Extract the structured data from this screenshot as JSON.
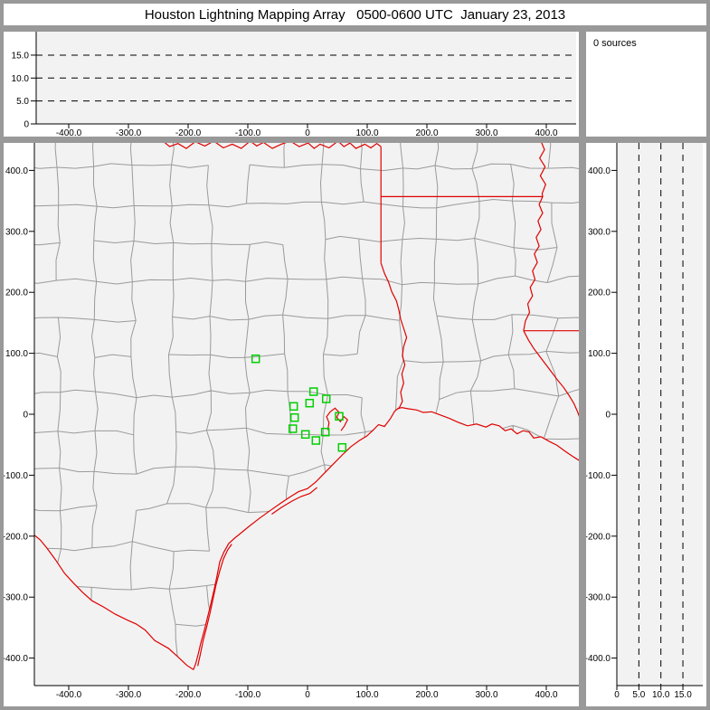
{
  "title": "Houston Lightning Mapping Array   0500-0600 UTC  January 23, 2013",
  "sources_label": "0 sources",
  "colors": {
    "frame": "#999999",
    "panel_bg": "#ffffff",
    "plot_bg": "#f2f2f2",
    "county_line": "#9a9a9a",
    "state_line": "#e00000",
    "station": "#00d000",
    "axis": "#000000",
    "gridline": "#000000",
    "text": "#000000"
  },
  "chart_data": {
    "type": "scatter",
    "title": "Houston Lightning Mapping Array",
    "time_range": "0500-0600 UTC",
    "date": "January 23, 2013",
    "sources_count": 0,
    "lightning_points": [],
    "x_km_ticks": {
      "values": [
        -400,
        -300,
        -200,
        -100,
        0,
        100,
        200,
        300,
        400
      ],
      "labels": [
        "-400.0",
        "-300.0",
        "-200.0",
        "-100.0",
        "0",
        "100.0",
        "200.0",
        "300.0",
        "400.0"
      ]
    },
    "y_km_ticks": {
      "values": [
        400,
        300,
        200,
        100,
        0,
        -100,
        -200,
        -300,
        -400
      ],
      "labels": [
        "400.0",
        "300.0",
        "200.0",
        "100.0",
        "0",
        "-100.0",
        "-200.0",
        "-300.0",
        "-400.0"
      ]
    },
    "alt_ticks": {
      "values": [
        0,
        5,
        10,
        15
      ],
      "labels": [
        "0",
        "5.0",
        "10.0",
        "15.0"
      ]
    },
    "alt_gridlines": [
      5,
      10,
      15
    ],
    "xlim_km": [
      -458,
      457
    ],
    "ylim_km": [
      -445,
      445
    ],
    "alt_lim_km": [
      0,
      20
    ],
    "stations_km": [
      [
        10.2,
        37.1
      ],
      [
        3.5,
        18.2
      ],
      [
        -23.2,
        12.9
      ],
      [
        31.4,
        25.2
      ],
      [
        -21.7,
        -5.5
      ],
      [
        -24.7,
        -23.7
      ],
      [
        -3.5,
        -33.1
      ],
      [
        14.1,
        -43.0
      ],
      [
        29.8,
        -29.2
      ],
      [
        53.0,
        -3.4
      ],
      [
        58.0,
        -54.5
      ],
      [
        -86.8,
        91.0
      ]
    ],
    "map_geometry_km": {
      "rio_grande": [
        [
          -458,
          -198
        ],
        [
          -448,
          -206
        ],
        [
          -437,
          -219
        ],
        [
          -422,
          -239
        ],
        [
          -407,
          -261
        ],
        [
          -392,
          -277
        ],
        [
          -377,
          -292
        ],
        [
          -361,
          -306
        ],
        [
          -342,
          -316
        ],
        [
          -322,
          -328
        ],
        [
          -301,
          -338
        ],
        [
          -287,
          -344
        ],
        [
          -272,
          -354
        ],
        [
          -256,
          -371
        ],
        [
          -233,
          -384
        ],
        [
          -217,
          -398
        ],
        [
          -202,
          -412
        ],
        [
          -191,
          -419
        ]
      ],
      "coastline": [
        [
          -191,
          -419
        ],
        [
          -187,
          -408
        ],
        [
          -183,
          -393
        ],
        [
          -179,
          -376
        ],
        [
          -173,
          -355
        ],
        [
          -167,
          -331
        ],
        [
          -162,
          -311
        ],
        [
          -157,
          -290
        ],
        [
          -152,
          -267
        ],
        [
          -147,
          -242
        ],
        [
          -140,
          -226
        ],
        [
          -132,
          -212
        ],
        [
          -123,
          -204
        ],
        [
          -113,
          -196
        ],
        [
          -98,
          -184
        ],
        [
          -81,
          -171
        ],
        [
          -61,
          -157
        ],
        [
          -45,
          -146
        ],
        [
          -30,
          -136
        ],
        [
          -15,
          -127
        ],
        [
          0,
          -122
        ],
        [
          14,
          -111
        ],
        [
          29,
          -96
        ],
        [
          44,
          -81
        ],
        [
          59,
          -66
        ],
        [
          73,
          -53
        ],
        [
          87,
          -43
        ],
        [
          99,
          -36
        ],
        [
          109,
          -27
        ],
        [
          119,
          -17
        ],
        [
          129,
          -20
        ],
        [
          139,
          -7
        ],
        [
          146,
          5
        ],
        [
          151,
          9
        ],
        [
          158,
          11
        ],
        [
          168,
          9
        ],
        [
          183,
          7
        ],
        [
          194,
          3
        ],
        [
          208,
          4
        ],
        [
          222,
          -1
        ],
        [
          238,
          -7
        ],
        [
          252,
          -13
        ],
        [
          268,
          -19
        ],
        [
          283,
          -16
        ],
        [
          299,
          -21
        ],
        [
          309,
          -16
        ],
        [
          321,
          -19
        ],
        [
          331,
          -27
        ],
        [
          341,
          -24
        ],
        [
          351,
          -32
        ],
        [
          361,
          -27
        ],
        [
          371,
          -29
        ],
        [
          379,
          -39
        ],
        [
          391,
          -37
        ],
        [
          404,
          -44
        ],
        [
          418,
          -51
        ],
        [
          432,
          -61
        ],
        [
          444,
          -69
        ],
        [
          457,
          -77
        ]
      ],
      "barrier_island": [
        [
          -184,
          -413
        ],
        [
          -180,
          -396
        ],
        [
          -175,
          -372
        ],
        [
          -169,
          -349
        ],
        [
          -163,
          -325
        ],
        [
          -158,
          -302
        ],
        [
          -153,
          -279
        ],
        [
          -147,
          -257
        ],
        [
          -141,
          -238
        ],
        [
          -134,
          -223
        ],
        [
          -127,
          -213
        ]
      ],
      "matagorda_island": [
        [
          -60,
          -164
        ],
        [
          -44,
          -153
        ],
        [
          -27,
          -143
        ],
        [
          -11,
          -135
        ],
        [
          4,
          -130
        ],
        [
          16,
          -120
        ]
      ],
      "galveston_bay": [
        [
          34,
          -26
        ],
        [
          36,
          -14
        ],
        [
          32,
          -4
        ],
        [
          38,
          4
        ],
        [
          46,
          10
        ],
        [
          53,
          3
        ],
        [
          49,
          -5
        ],
        [
          55,
          -12
        ],
        [
          61,
          -4
        ],
        [
          67,
          -9
        ],
        [
          62,
          -19
        ],
        [
          56,
          -27
        ]
      ],
      "red_river": [
        [
          -242,
          448
        ],
        [
          -231,
          439
        ],
        [
          -217,
          444
        ],
        [
          -203,
          436
        ],
        [
          -188,
          447
        ],
        [
          -172,
          440
        ],
        [
          -157,
          448
        ],
        [
          -141,
          437
        ],
        [
          -126,
          443
        ],
        [
          -111,
          436
        ],
        [
          -96,
          448
        ],
        [
          -85,
          440
        ],
        [
          -74,
          446
        ],
        [
          -59,
          436
        ],
        [
          -44,
          443
        ],
        [
          -29,
          448
        ],
        [
          -14,
          439
        ],
        [
          1,
          445
        ],
        [
          11,
          436
        ],
        [
          21,
          443
        ],
        [
          36,
          437
        ],
        [
          51,
          448
        ],
        [
          61,
          439
        ],
        [
          71,
          445
        ],
        [
          81,
          436
        ],
        [
          96,
          443
        ],
        [
          106,
          437
        ],
        [
          116,
          444
        ],
        [
          123,
          439
        ]
      ],
      "east_texas_border": [
        [
          123,
          439
        ],
        [
          123,
          248
        ]
      ],
      "sabine_river": [
        [
          123,
          248
        ],
        [
          129,
          231
        ],
        [
          136,
          216
        ],
        [
          141,
          201
        ],
        [
          149,
          186
        ],
        [
          153,
          171
        ],
        [
          156,
          156
        ],
        [
          161,
          141
        ],
        [
          166,
          126
        ],
        [
          161,
          111
        ],
        [
          159,
          96
        ],
        [
          163,
          81
        ],
        [
          158,
          66
        ],
        [
          161,
          51
        ],
        [
          156,
          36
        ],
        [
          159,
          21
        ],
        [
          154,
          11
        ],
        [
          151,
          9
        ]
      ],
      "ar_la_border": [
        [
          123,
          357
        ],
        [
          394,
          357
        ]
      ],
      "mississippi_river": [
        [
          391,
          448
        ],
        [
          397,
          434
        ],
        [
          389,
          420
        ],
        [
          398,
          406
        ],
        [
          390,
          391
        ],
        [
          399,
          377
        ],
        [
          393,
          362
        ],
        [
          394,
          357
        ],
        [
          388,
          344
        ],
        [
          394,
          330
        ],
        [
          386,
          317
        ],
        [
          391,
          303
        ],
        [
          383,
          290
        ],
        [
          388,
          276
        ],
        [
          380,
          263
        ],
        [
          385,
          249
        ],
        [
          377,
          235
        ],
        [
          381,
          221
        ],
        [
          373,
          208
        ],
        [
          377,
          194
        ],
        [
          369,
          181
        ],
        [
          372,
          167
        ],
        [
          365,
          153
        ],
        [
          362,
          137
        ]
      ],
      "mississippi_lower": [
        [
          362,
          137
        ],
        [
          370,
          122
        ],
        [
          379,
          108
        ],
        [
          389,
          95
        ],
        [
          399,
          82
        ],
        [
          409,
          69
        ],
        [
          419,
          56
        ],
        [
          429,
          44
        ],
        [
          438,
          31
        ],
        [
          446,
          18
        ],
        [
          452,
          5
        ],
        [
          457,
          -8
        ]
      ],
      "la_ms_border": [
        [
          362,
          137
        ],
        [
          457,
          137
        ]
      ]
    }
  }
}
